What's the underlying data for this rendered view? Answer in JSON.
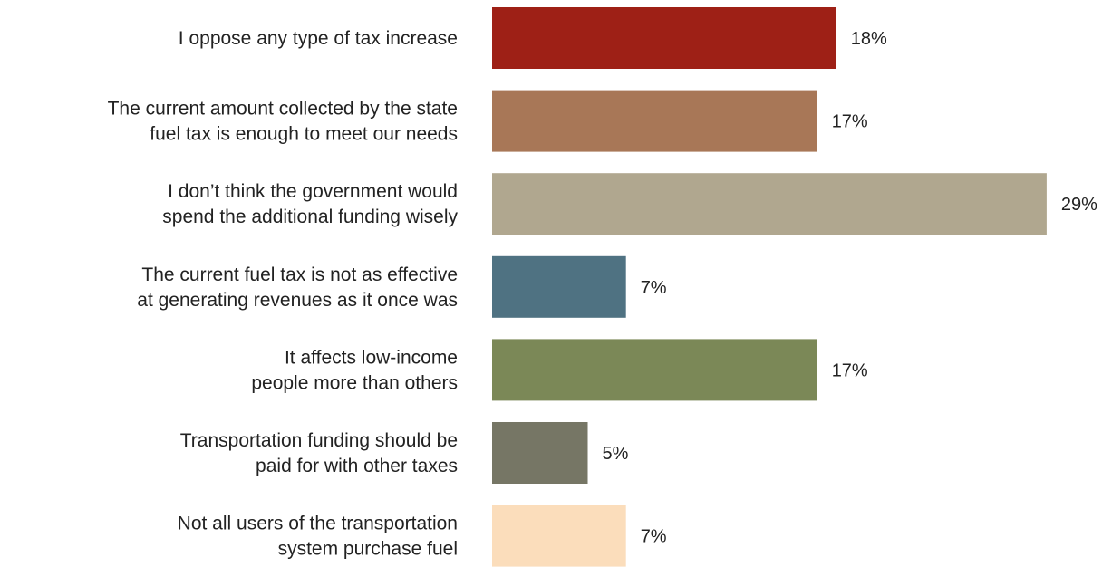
{
  "chart_data": {
    "type": "bar",
    "orientation": "horizontal",
    "title": "",
    "xlabel": "",
    "ylabel": "",
    "xlim": [
      0,
      30
    ],
    "grid": false,
    "legend": "none",
    "categories": [
      [
        "I oppose any type of tax increase"
      ],
      [
        "The current amount collected by the state",
        "fuel tax is enough to meet our needs"
      ],
      [
        "I don’t think the government would",
        "spend the additional funding wisely"
      ],
      [
        "The current fuel tax is not as effective",
        "at generating revenues as it once was"
      ],
      [
        "It affects low-income",
        "people more than others"
      ],
      [
        "Transportation funding should be",
        "paid for with other taxes"
      ],
      [
        "Not all users of the transportation",
        "system purchase fuel"
      ]
    ],
    "values": [
      18,
      17,
      29,
      7,
      17,
      5,
      7
    ],
    "value_labels": [
      "18%",
      "17%",
      "29%",
      "7%",
      "17%",
      "5%",
      "7%"
    ],
    "colors": [
      "#9e2016",
      "#a87757",
      "#b0a78f",
      "#4f7282",
      "#7b8857",
      "#767665",
      "#fbddbb"
    ]
  }
}
